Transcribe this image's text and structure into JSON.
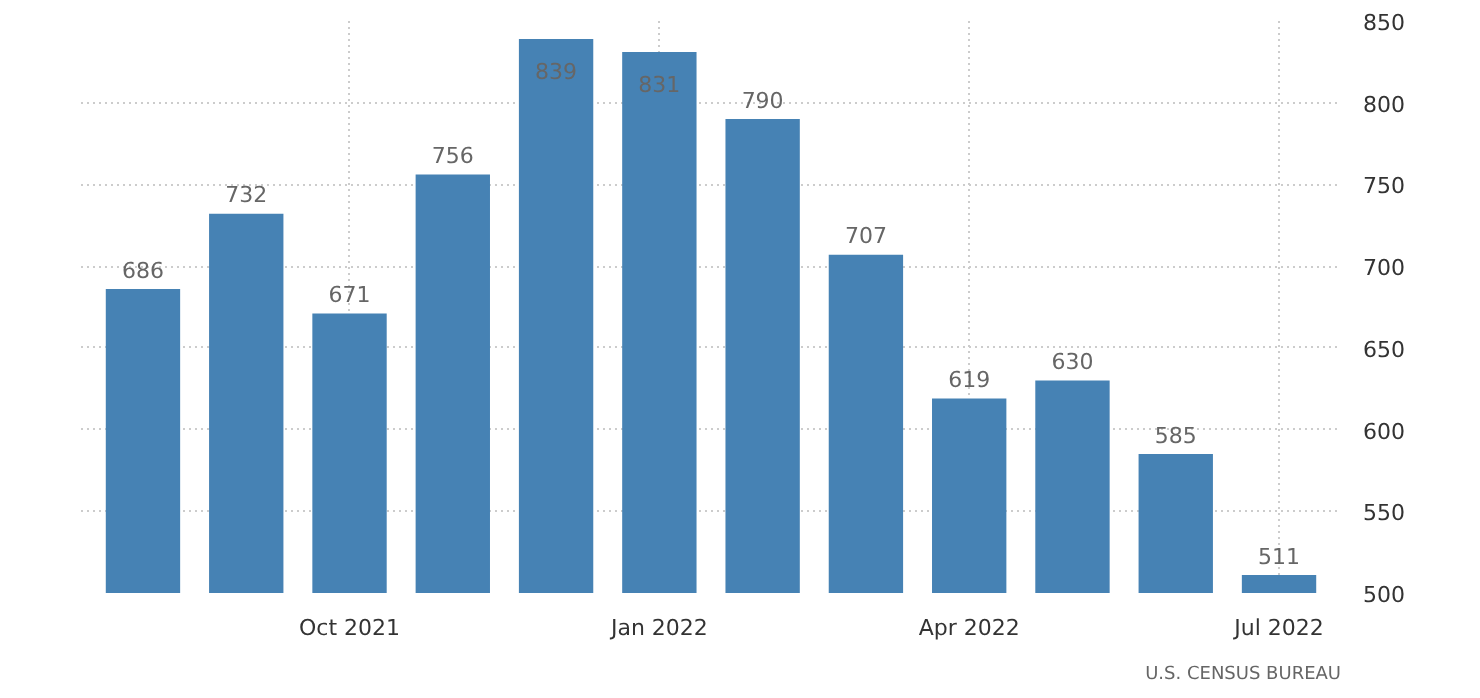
{
  "chart_data": {
    "type": "bar",
    "categories": [
      null,
      null,
      "Oct 2021",
      null,
      null,
      "Jan 2022",
      null,
      null,
      "Apr 2022",
      null,
      null,
      "Jul 2022"
    ],
    "values": [
      686,
      732,
      671,
      756,
      839,
      831,
      790,
      707,
      619,
      630,
      585,
      511
    ],
    "color": "#4682b4",
    "ylim": [
      500,
      850
    ],
    "yticks": [
      500,
      550,
      600,
      650,
      700,
      750,
      800,
      850
    ],
    "grid": true,
    "data_labels": true,
    "annotations": [
      "U.S. CENSUS BUREAU"
    ]
  }
}
